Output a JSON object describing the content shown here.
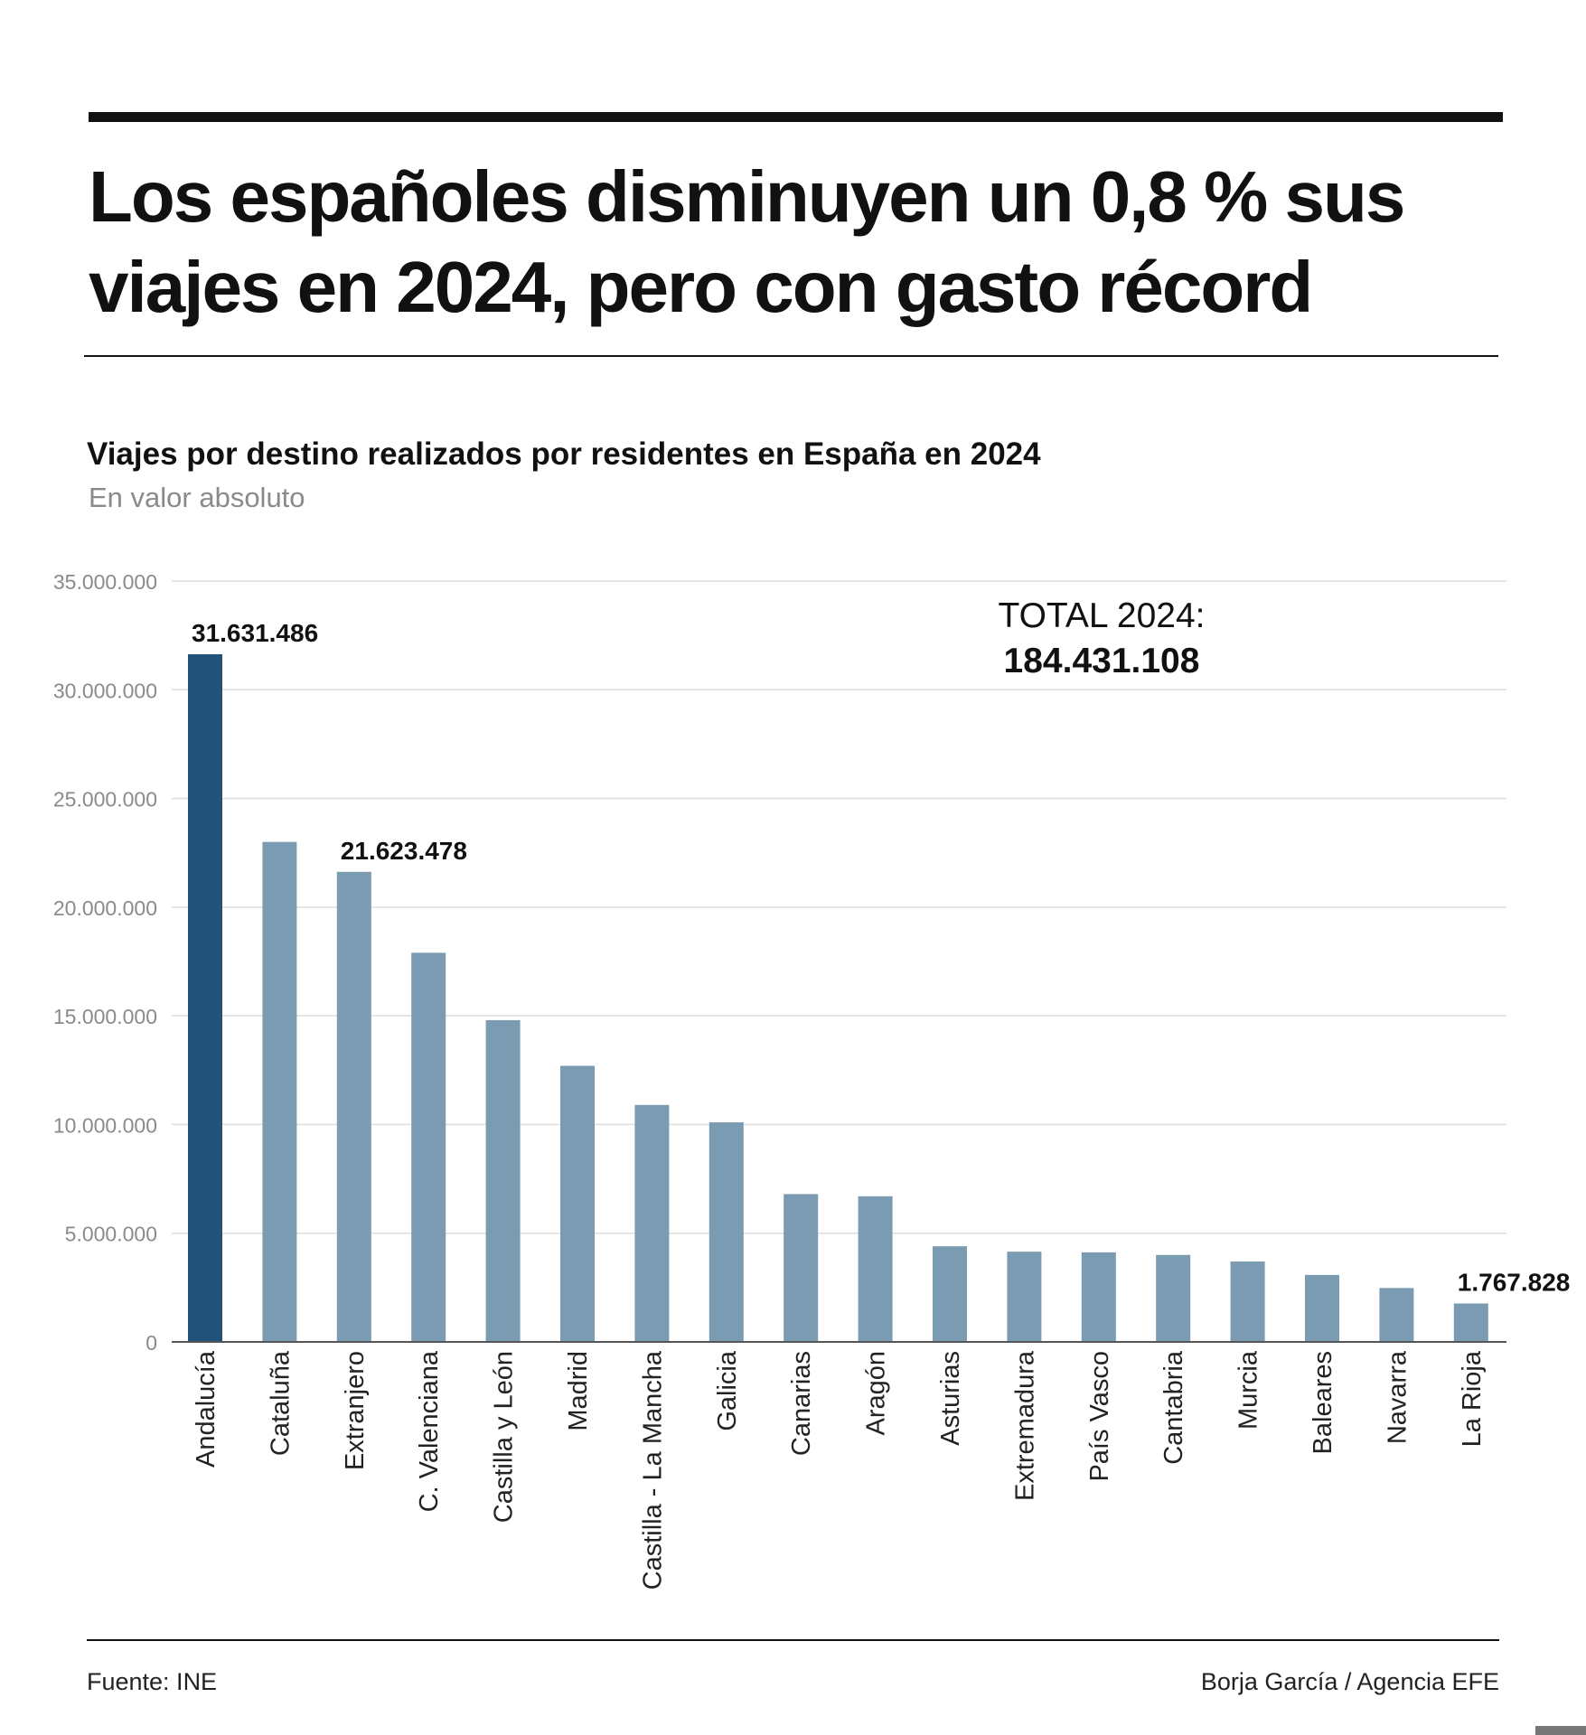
{
  "headline": {
    "line1": "Los españoles disminuyen un 0,8 % sus",
    "line2": "viajes en 2024, pero con gasto récord"
  },
  "chart_data": {
    "type": "bar",
    "title": "Viajes por destino realizados por residentes en España en 2024",
    "subtitle": "En valor absoluto",
    "categories": [
      "Andalucía",
      "Cataluña",
      "Extranjero",
      "C. Valenciana",
      "Castilla y León",
      "Madrid",
      "Castilla - La Mancha",
      "Galicia",
      "Canarias",
      "Aragón",
      "Asturias",
      "Extremadura",
      "País Vasco",
      "Cantabria",
      "Murcia",
      "Baleares",
      "Navarra",
      "La Rioja"
    ],
    "values": [
      31631486,
      23000000,
      21623478,
      17900000,
      14800000,
      12700000,
      10900000,
      10100000,
      6800000,
      6700000,
      4400000,
      4150000,
      4120000,
      4000000,
      3700000,
      3080000,
      2480000,
      1767828
    ],
    "highlight_index": 0,
    "colors": {
      "highlight": "#235278",
      "bar": "#7a9bb2",
      "grid": "#dedede",
      "axis": "#555555",
      "tick_text": "#8a8a8a"
    },
    "data_labels": [
      {
        "index": 0,
        "text": "31.631.486"
      },
      {
        "index": 2,
        "text": "21.623.478"
      },
      {
        "index": 17,
        "text": "1.767.828"
      }
    ],
    "yticks": [
      0,
      5000000,
      10000000,
      15000000,
      20000000,
      25000000,
      30000000,
      35000000
    ],
    "ytick_labels": [
      "0",
      "5.000.000",
      "10.000.000",
      "15.000.000",
      "20.000.000",
      "25.000.000",
      "30.000.000",
      "35.000.000"
    ],
    "ylim": [
      0,
      35000000
    ],
    "grid": true,
    "xlabel": "",
    "ylabel": "",
    "annotation": {
      "label": "TOTAL 2024:",
      "value": "184.431.108"
    }
  },
  "footer": {
    "source": "Fuente: INE",
    "credit": "Borja García / Agencia EFE"
  }
}
